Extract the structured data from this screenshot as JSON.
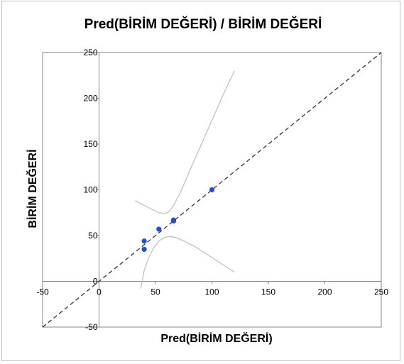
{
  "chart_data": {
    "type": "scatter",
    "title": "Pred(BİRİM DEĞERİ) / BİRİM DEĞERİ",
    "xlabel": "Pred(BİRİM DEĞERİ)",
    "ylabel": "BİRİM DEĞERİ",
    "xlim": [
      -50,
      250
    ],
    "ylim": [
      -50,
      250
    ],
    "xticks": [
      "-50",
      "0",
      "50",
      "100",
      "150",
      "200",
      "250"
    ],
    "yticks": [
      "-50",
      "0",
      "50",
      "100",
      "150",
      "200",
      "250"
    ],
    "grid": false,
    "points": [
      {
        "x": 40,
        "y": 44
      },
      {
        "x": 40,
        "y": 35
      },
      {
        "x": 53,
        "y": 57
      },
      {
        "x": 66,
        "y": 66
      },
      {
        "x": 66,
        "y": 67
      },
      {
        "x": 100,
        "y": 100
      }
    ],
    "identity_line": {
      "x": [
        -50,
        250
      ],
      "y": [
        -50,
        250
      ]
    },
    "upper_band": {
      "x": [
        32,
        40,
        48,
        53,
        58,
        62,
        66,
        72,
        80,
        90,
        100,
        110,
        120
      ],
      "y": [
        88,
        83,
        78,
        75,
        74,
        76,
        83,
        97,
        120,
        148,
        176,
        204,
        230
      ]
    },
    "lower_band": {
      "x": [
        37,
        40,
        44,
        48,
        53,
        58,
        63,
        68,
        75,
        85,
        100,
        120
      ],
      "y": [
        -8,
        12,
        26,
        36,
        44,
        48,
        49,
        48,
        44,
        38,
        26,
        10
      ]
    },
    "colors": {
      "points": "#1f4fd6",
      "identity_line": "#404040",
      "bands": "#c0c0c0",
      "axes": "#868686",
      "plot_border": "#868686"
    }
  }
}
